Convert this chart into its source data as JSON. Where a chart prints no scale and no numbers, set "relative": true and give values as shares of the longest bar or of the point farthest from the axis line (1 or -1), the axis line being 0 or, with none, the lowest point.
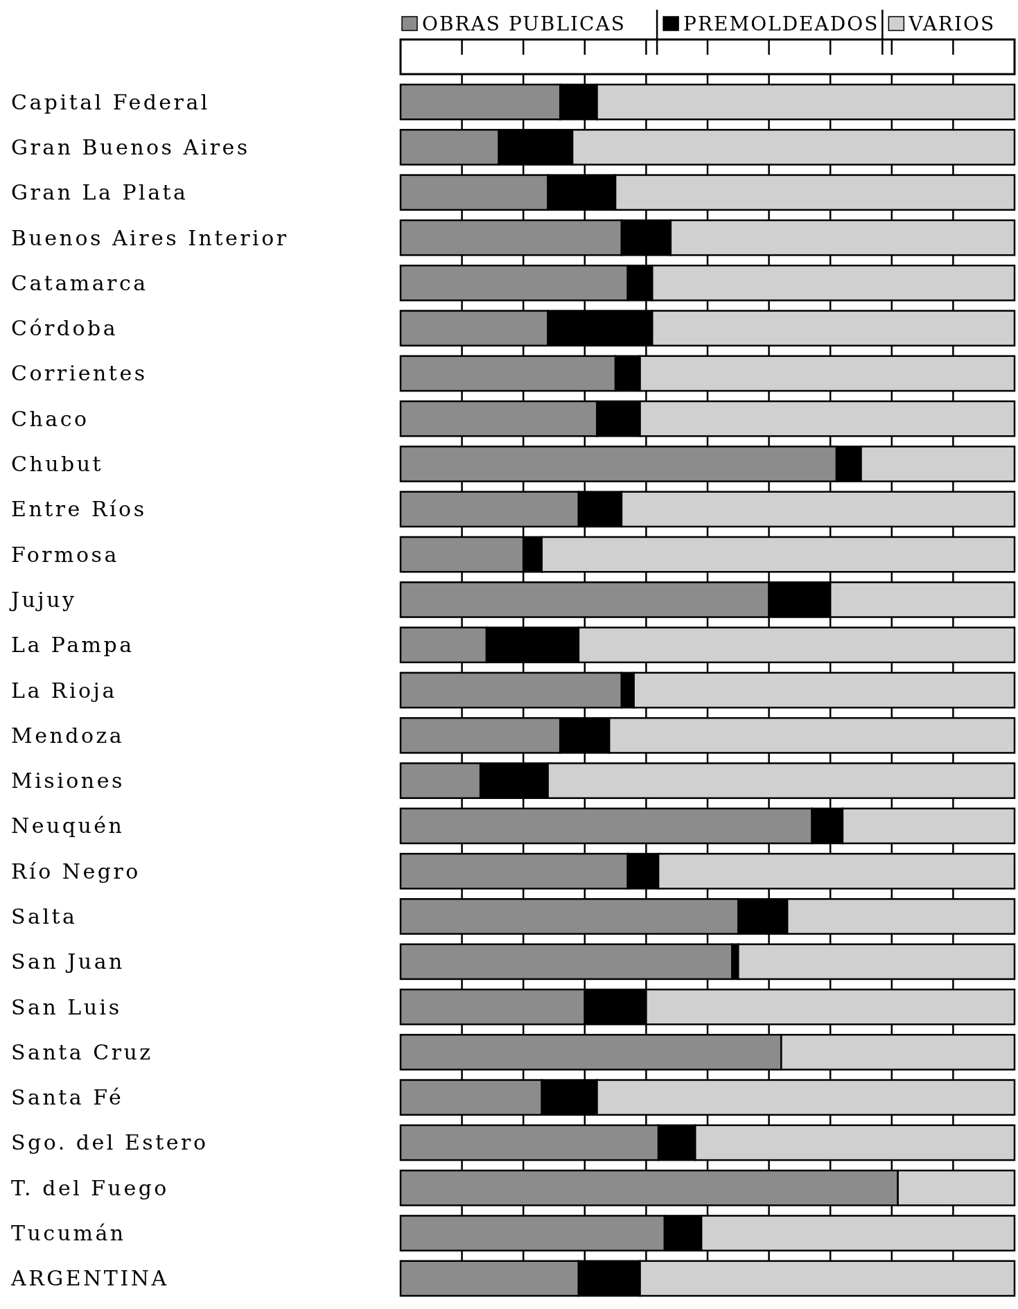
{
  "chart_data": {
    "type": "bar",
    "orientation": "horizontal",
    "stacked": true,
    "relative": true,
    "categories": [
      "Capital Federal",
      "Gran Buenos Aires",
      "Gran La Plata",
      "Buenos Aires Interior",
      "Catamarca",
      "Córdoba",
      "Corrientes",
      "Chaco",
      "Chubut",
      "Entre Ríos",
      "Formosa",
      "Jujuy",
      "La Pampa",
      "La Rioja",
      "Mendoza",
      "Misiones",
      "Neuquén",
      "Río Negro",
      "Salta",
      "San Juan",
      "San Luis",
      "Santa Cruz",
      "Santa Fé",
      "Sgo. del Estero",
      "T. del Fuego",
      "Tucumán",
      "ARGENTINA"
    ],
    "series": [
      {
        "name": "OBRAS PUBLICAS",
        "color": "#8c8c8c",
        "values": [
          0.26,
          0.16,
          0.24,
          0.36,
          0.37,
          0.24,
          0.35,
          0.32,
          0.71,
          0.29,
          0.2,
          0.6,
          0.14,
          0.36,
          0.26,
          0.13,
          0.67,
          0.37,
          0.55,
          0.54,
          0.3,
          0.62,
          0.23,
          0.42,
          0.81,
          0.43,
          0.29
        ]
      },
      {
        "name": "PREMOLDEADOS",
        "color": "#000000",
        "values": [
          0.06,
          0.12,
          0.11,
          0.08,
          0.04,
          0.17,
          0.04,
          0.07,
          0.04,
          0.07,
          0.03,
          0.1,
          0.15,
          0.02,
          0.08,
          0.11,
          0.05,
          0.05,
          0.08,
          0.01,
          0.1,
          0,
          0.09,
          0.06,
          0,
          0.06,
          0.1
        ]
      },
      {
        "name": "VARIOS",
        "color": "#d0d0d0",
        "values": [
          0.68,
          0.72,
          0.65,
          0.56,
          0.59,
          0.59,
          0.61,
          0.61,
          0.25,
          0.64,
          0.77,
          0.3,
          0.71,
          0.62,
          0.66,
          0.76,
          0.28,
          0.58,
          0.37,
          0.45,
          0.6,
          0.38,
          0.68,
          0.52,
          0.19,
          0.51,
          0.61
        ]
      }
    ],
    "legend": "top",
    "grid": "x"
  }
}
